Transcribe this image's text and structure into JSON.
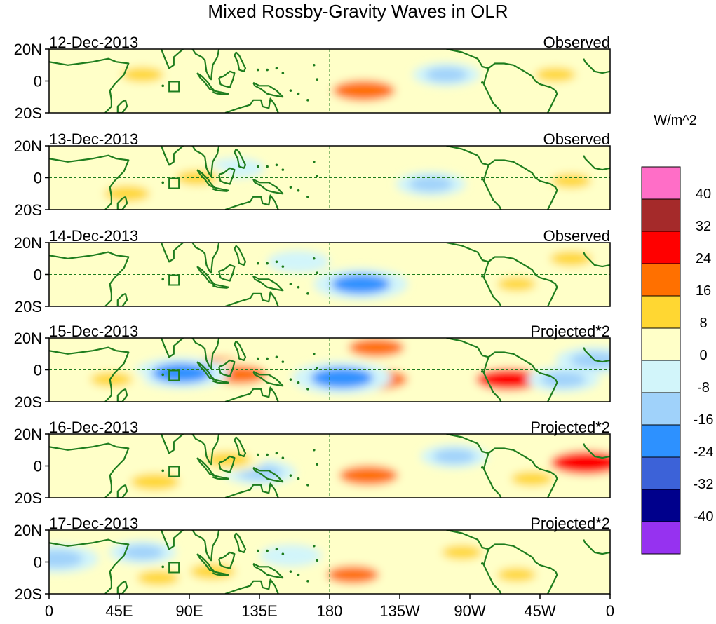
{
  "chart_data": {
    "type": "heatmap",
    "title": "Mixed Rossby-Gravity Waves in OLR",
    "units_label": "W/m^2",
    "x_tick_labels": [
      "0",
      "45E",
      "90E",
      "135E",
      "180",
      "135W",
      "90W",
      "45W",
      "0"
    ],
    "x_range_deg_east": [
      0,
      360
    ],
    "y_tick_labels": [
      "20N",
      "0",
      "20S"
    ],
    "y_range_deg": [
      -20,
      20
    ],
    "colorbar": {
      "levels": [
        40,
        32,
        24,
        16,
        8,
        0,
        -8,
        -16,
        -24,
        -32,
        -40
      ],
      "colors": [
        "#ff6ec7",
        "#a52a2a",
        "#ff0000",
        "#ff7000",
        "#ffd732",
        "#ffffc8",
        "#d2f5fa",
        "#a0d2fa",
        "#2d91ff",
        "#3c62d8",
        "#00008c",
        "#9632f0"
      ]
    },
    "panels": [
      {
        "date": "12-Dec-2013",
        "kind": "Observed",
        "anomalies": [
          {
            "lon": 202,
            "lat": -6,
            "value": 22
          },
          {
            "lon": 60,
            "lat": 4,
            "value": 10
          },
          {
            "lon": 255,
            "lat": 4,
            "value": -10
          },
          {
            "lon": 125,
            "lat": -12,
            "value": 6
          },
          {
            "lon": 325,
            "lat": 4,
            "value": 9
          },
          {
            "lon": 30,
            "lat": -8,
            "value": 6
          }
        ]
      },
      {
        "date": "13-Dec-2013",
        "kind": "Observed",
        "anomalies": [
          {
            "lon": 50,
            "lat": -10,
            "value": 12
          },
          {
            "lon": 245,
            "lat": -4,
            "value": -11
          },
          {
            "lon": 200,
            "lat": 10,
            "value": 5
          },
          {
            "lon": 335,
            "lat": -2,
            "value": 9
          },
          {
            "lon": 120,
            "lat": 6,
            "value": -6
          },
          {
            "lon": 95,
            "lat": 0,
            "value": 10
          }
        ]
      },
      {
        "date": "14-Dec-2013",
        "kind": "Observed",
        "anomalies": [
          {
            "lon": 200,
            "lat": -6,
            "value": -20
          },
          {
            "lon": 335,
            "lat": 10,
            "value": 10
          },
          {
            "lon": 250,
            "lat": 6,
            "value": 7
          },
          {
            "lon": 160,
            "lat": 8,
            "value": -8
          },
          {
            "lon": 40,
            "lat": -10,
            "value": 5
          },
          {
            "lon": 300,
            "lat": -6,
            "value": 8
          }
        ]
      },
      {
        "date": "15-Dec-2013",
        "kind": "Projected*2",
        "anomalies": [
          {
            "lon": 210,
            "lat": -6,
            "value": 22
          },
          {
            "lon": 188,
            "lat": -5,
            "value": -22
          },
          {
            "lon": 110,
            "lat": 2,
            "value": 20
          },
          {
            "lon": 122,
            "lat": -3,
            "value": 18
          },
          {
            "lon": 85,
            "lat": -2,
            "value": -20
          },
          {
            "lon": 295,
            "lat": -6,
            "value": 24
          },
          {
            "lon": 330,
            "lat": -6,
            "value": -12
          },
          {
            "lon": 350,
            "lat": 6,
            "value": -14
          },
          {
            "lon": 210,
            "lat": 14,
            "value": 18
          },
          {
            "lon": 40,
            "lat": -6,
            "value": 10
          }
        ]
      },
      {
        "date": "16-Dec-2013",
        "kind": "Projected*2",
        "anomalies": [
          {
            "lon": 205,
            "lat": -6,
            "value": 20
          },
          {
            "lon": 345,
            "lat": 2,
            "value": 28
          },
          {
            "lon": 68,
            "lat": -10,
            "value": 14
          },
          {
            "lon": 135,
            "lat": -4,
            "value": -12
          },
          {
            "lon": 260,
            "lat": 6,
            "value": -10
          },
          {
            "lon": 310,
            "lat": -8,
            "value": 10
          },
          {
            "lon": 115,
            "lat": 4,
            "value": 12
          },
          {
            "lon": 30,
            "lat": 8,
            "value": 6
          }
        ]
      },
      {
        "date": "17-Dec-2013",
        "kind": "Projected*2",
        "anomalies": [
          {
            "lon": 195,
            "lat": -8,
            "value": 16
          },
          {
            "lon": 105,
            "lat": -6,
            "value": 12
          },
          {
            "lon": 60,
            "lat": 6,
            "value": -10
          },
          {
            "lon": 70,
            "lat": -10,
            "value": 10
          },
          {
            "lon": 265,
            "lat": 6,
            "value": 9
          },
          {
            "lon": 155,
            "lat": 4,
            "value": -8
          },
          {
            "lon": 300,
            "lat": -8,
            "value": 8
          },
          {
            "lon": 5,
            "lat": 2,
            "value": -16
          }
        ]
      }
    ]
  }
}
